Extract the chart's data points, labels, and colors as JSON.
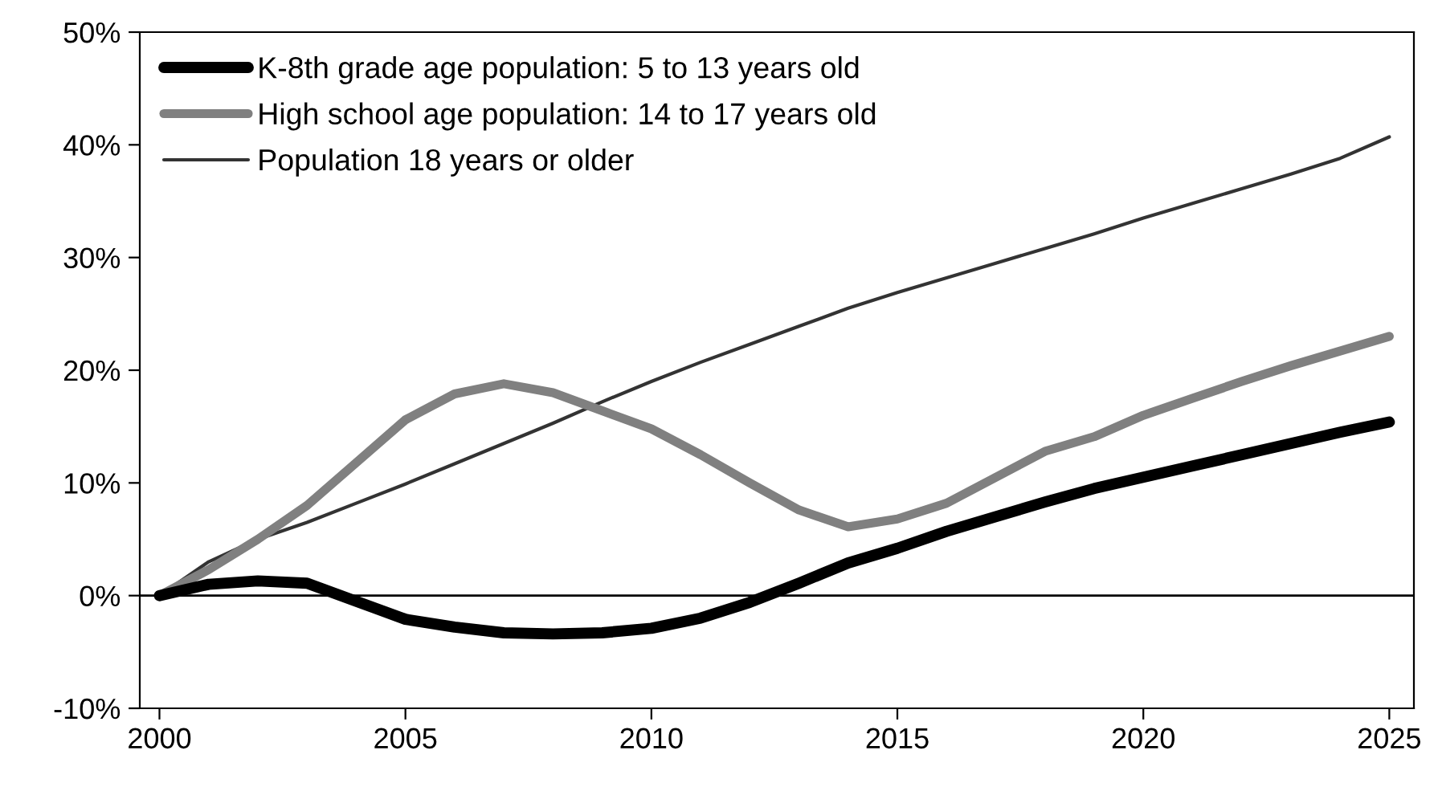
{
  "chart_data": {
    "type": "line",
    "x": [
      2000,
      2001,
      2002,
      2003,
      2004,
      2005,
      2006,
      2007,
      2008,
      2009,
      2010,
      2011,
      2012,
      2013,
      2014,
      2015,
      2016,
      2017,
      2018,
      2019,
      2020,
      2021,
      2022,
      2023,
      2024,
      2025
    ],
    "series": [
      {
        "name": "K-8th grade age population: 5 to 13 years old",
        "color": "#000000",
        "values": [
          0,
          1.0,
          1.3,
          1.1,
          -0.5,
          -2.1,
          -2.8,
          -3.3,
          -3.4,
          -3.3,
          -2.9,
          -2.0,
          -0.6,
          1.1,
          2.9,
          4.2,
          5.7,
          7.0,
          8.3,
          9.5,
          10.5,
          11.5,
          12.5,
          13.5,
          14.5,
          15.4
        ]
      },
      {
        "name": "High school age population: 14 to 17 years old",
        "color": "#808080",
        "values": [
          0,
          2.3,
          5.0,
          8.0,
          11.8,
          15.6,
          17.9,
          18.8,
          18.0,
          16.4,
          14.8,
          12.5,
          10.0,
          7.6,
          6.1,
          6.8,
          8.2,
          10.5,
          12.8,
          14.1,
          16.0,
          17.5,
          19.0,
          20.4,
          21.7,
          23.0
        ]
      },
      {
        "name": "Population 18 years or older",
        "color": "#333333",
        "values": [
          0,
          3.0,
          5.0,
          6.5,
          8.2,
          9.9,
          11.7,
          13.5,
          15.3,
          17.2,
          19.0,
          20.7,
          22.3,
          23.9,
          25.5,
          26.9,
          28.2,
          29.5,
          30.8,
          32.1,
          33.5,
          34.8,
          36.1,
          37.4,
          38.8,
          40.7
        ]
      }
    ],
    "xlim": [
      1999.6,
      2025.5
    ],
    "xticks": [
      2000,
      2005,
      2010,
      2015,
      2020,
      2025
    ],
    "ylim": [
      -10,
      50
    ],
    "yticks": [
      {
        "value": -10,
        "label": "-10%"
      },
      {
        "value": 0,
        "label": "0%"
      },
      {
        "value": 10,
        "label": "10%"
      },
      {
        "value": 20,
        "label": "20%"
      },
      {
        "value": 30,
        "label": "30%"
      },
      {
        "value": 40,
        "label": "40%"
      },
      {
        "value": 50,
        "label": "50%"
      }
    ],
    "ref_lines": [
      {
        "axis": "y",
        "value": 0,
        "label": null,
        "color": "#000000"
      }
    ],
    "grid": false,
    "legend": "top left",
    "marker": "none",
    "line_style": "solid"
  }
}
